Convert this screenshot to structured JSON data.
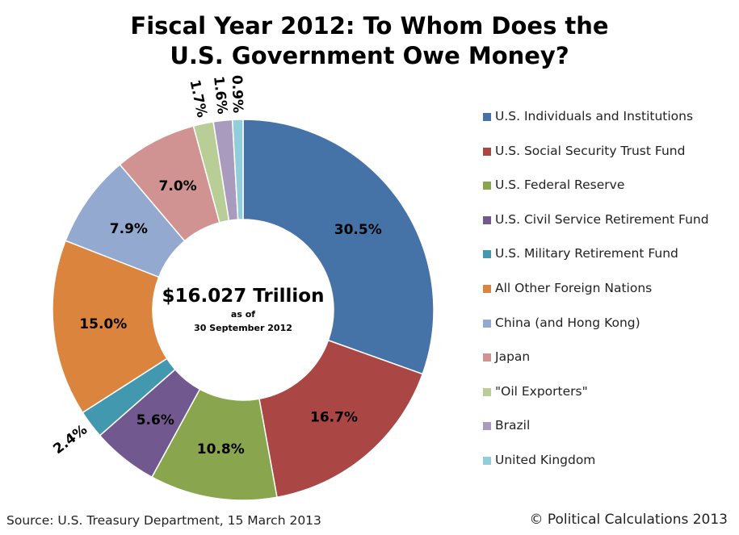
{
  "chart_data": {
    "type": "pie",
    "variant": "donut",
    "title_lines": [
      "Fiscal Year 2012: To Whom Does the",
      "U.S. Government Owe Money?"
    ],
    "center_label": {
      "main": "$16.027 Trillion",
      "sub1": "as of",
      "sub2": "30 September 2012"
    },
    "slices": [
      {
        "name": "U.S. Individuals and Institutions",
        "value": 30.5,
        "label": "30.5%",
        "color": "#4572a7"
      },
      {
        "name": "U.S. Social Security Trust Fund",
        "value": 16.7,
        "label": "16.7%",
        "color": "#aa4643"
      },
      {
        "name": "U.S. Federal Reserve",
        "value": 10.8,
        "label": "10.8%",
        "color": "#89a54e"
      },
      {
        "name": "U.S. Civil Service Retirement Fund",
        "value": 5.6,
        "label": "5.6%",
        "color": "#71588f"
      },
      {
        "name": "U.S. Military Retirement Fund",
        "value": 2.4,
        "label": "2.4%",
        "color": "#4198af"
      },
      {
        "name": "All Other Foreign Nations",
        "value": 15.0,
        "label": "15.0%",
        "color": "#db843d"
      },
      {
        "name": "China (and Hong Kong)",
        "value": 7.9,
        "label": "7.9%",
        "color": "#93a9cf"
      },
      {
        "name": "Japan",
        "value": 7.0,
        "label": "7.0%",
        "color": "#d19392"
      },
      {
        "name": "\"Oil Exporters\"",
        "value": 1.7,
        "label": "1.7%",
        "color": "#b9cd96"
      },
      {
        "name": "Brazil",
        "value": 1.6,
        "label": "1.6%",
        "color": "#a99bbd"
      },
      {
        "name": "United Kingdom",
        "value": 0.9,
        "label": "0.9%",
        "color": "#92cddc"
      }
    ],
    "legend_position": "right",
    "source": "Source: U.S. Treasury Department, 15 March 2013",
    "credit": "© Political Calculations 2013"
  }
}
